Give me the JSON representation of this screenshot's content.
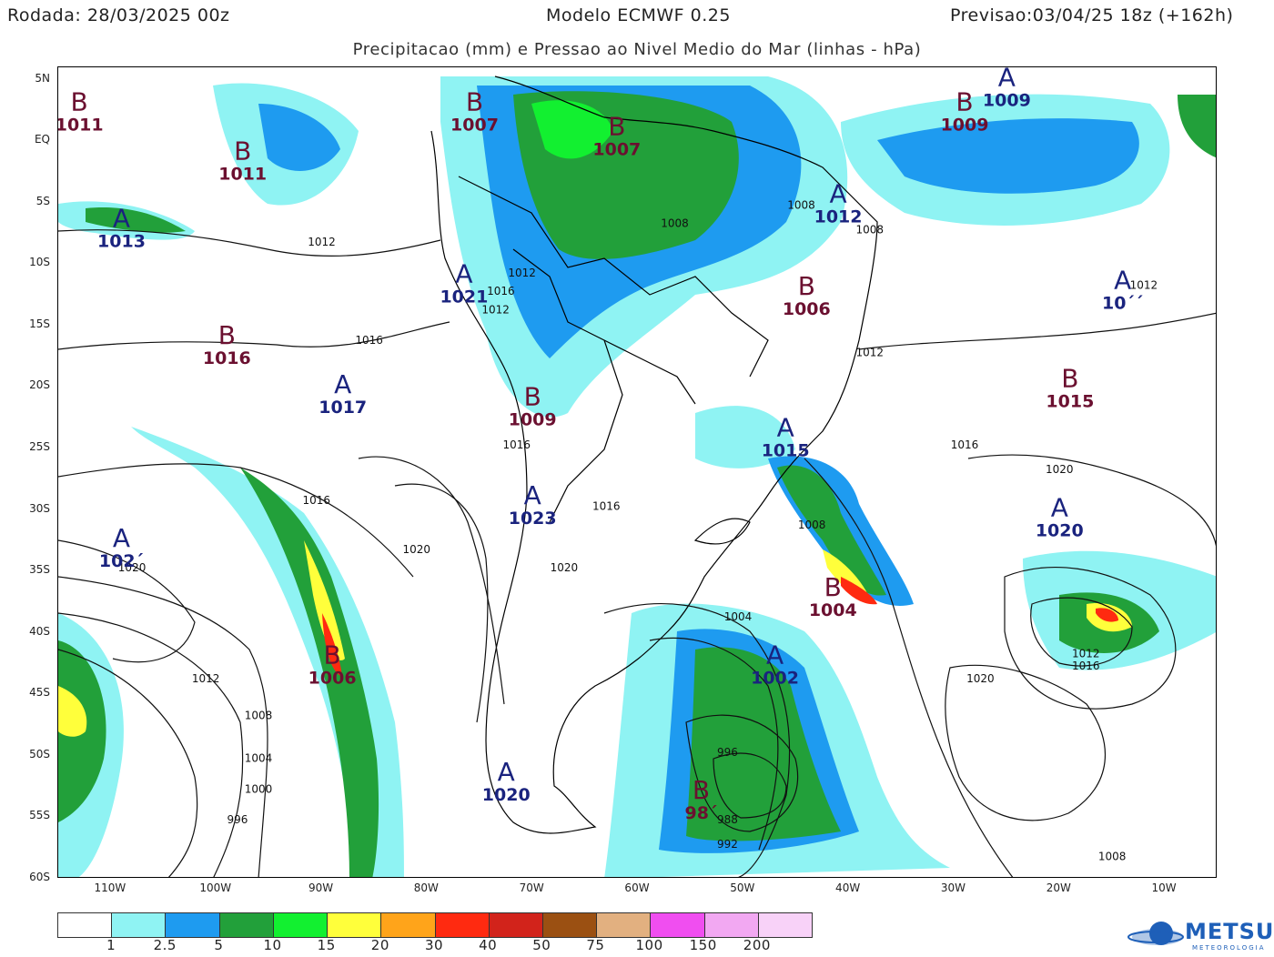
{
  "header": {
    "run": "Rodada: 28/03/2025 00z",
    "model": "Modelo ECMWF 0.25",
    "forecast": "Previsao:03/04/25 18z (+162h)",
    "subtitle": "Precipitacao (mm) e Pressao ao Nivel Medio do Mar (linhas - hPa)"
  },
  "axes": {
    "lat_labels": [
      "5N",
      "EQ",
      "5S",
      "10S",
      "15S",
      "20S",
      "25S",
      "30S",
      "35S",
      "40S",
      "45S",
      "50S",
      "55S",
      "60S"
    ],
    "lon_labels": [
      "110W",
      "100W",
      "90W",
      "80W",
      "70W",
      "60W",
      "50W",
      "40W",
      "30W",
      "20W",
      "10W"
    ]
  },
  "map": {
    "extent": {
      "lon_min": -115.0,
      "lon_max": -5.0,
      "lat_min": -60.0,
      "lat_max": 6.0
    },
    "pressure_centers": [
      {
        "type": "B",
        "value": "1011",
        "lon": -113,
        "lat": 2.5
      },
      {
        "type": "B",
        "value": "1011",
        "lon": -97.5,
        "lat": -1.5
      },
      {
        "type": "A",
        "value": "1013",
        "lon": -109,
        "lat": -7
      },
      {
        "type": "B",
        "value": "1007",
        "lon": -75.5,
        "lat": 2.5
      },
      {
        "type": "B",
        "value": "1007",
        "lon": -62,
        "lat": 0.5
      },
      {
        "type": "B",
        "value": "1009",
        "lon": -29,
        "lat": 2.5
      },
      {
        "type": "A",
        "value": "1009",
        "lon": -25,
        "lat": 4.5
      },
      {
        "type": "A",
        "value": "1012",
        "lon": -41,
        "lat": -5
      },
      {
        "type": "A",
        "value": "1021",
        "lon": -76.5,
        "lat": -11.5
      },
      {
        "type": "B",
        "value": "1006",
        "lon": -44,
        "lat": -12.5
      },
      {
        "type": "A",
        "value": "10´´",
        "lon": -14,
        "lat": -12
      },
      {
        "type": "B",
        "value": "1016",
        "lon": -99,
        "lat": -16.5
      },
      {
        "type": "A",
        "value": "1017",
        "lon": -88,
        "lat": -20.5
      },
      {
        "type": "B",
        "value": "1009",
        "lon": -70,
        "lat": -21.5
      },
      {
        "type": "B",
        "value": "1015",
        "lon": -19,
        "lat": -20
      },
      {
        "type": "A",
        "value": "1015",
        "lon": -46,
        "lat": -24
      },
      {
        "type": "A",
        "value": "1023",
        "lon": -70,
        "lat": -29.5
      },
      {
        "type": "A",
        "value": "1020",
        "lon": -20,
        "lat": -30.5
      },
      {
        "type": "A",
        "value": "102´",
        "lon": -109,
        "lat": -33
      },
      {
        "type": "B",
        "value": "1004",
        "lon": -41.5,
        "lat": -37
      },
      {
        "type": "B",
        "value": "1006",
        "lon": -89,
        "lat": -42.5
      },
      {
        "type": "A",
        "value": "1002",
        "lon": -47,
        "lat": -42.5
      },
      {
        "type": "A",
        "value": "1020",
        "lon": -72.5,
        "lat": -52
      },
      {
        "type": "B",
        "value": "98´",
        "lon": -54,
        "lat": -53.5
      }
    ],
    "isobar_labels": [
      {
        "value": "1012",
        "lon": -90,
        "lat": -8.5
      },
      {
        "value": "1012",
        "lon": -71,
        "lat": -11
      },
      {
        "value": "1016",
        "lon": -73,
        "lat": -12.5
      },
      {
        "value": "1012",
        "lon": -73.5,
        "lat": -14
      },
      {
        "value": "1016",
        "lon": -85.5,
        "lat": -16.5
      },
      {
        "value": "1008",
        "lon": -44.5,
        "lat": -5.5
      },
      {
        "value": "1008",
        "lon": -56.5,
        "lat": -7
      },
      {
        "value": "1008",
        "lon": -38,
        "lat": -7.5
      },
      {
        "value": "1012",
        "lon": -38,
        "lat": -17.5
      },
      {
        "value": "1012",
        "lon": -12,
        "lat": -12
      },
      {
        "value": "1016",
        "lon": -71.5,
        "lat": -25
      },
      {
        "value": "1016",
        "lon": -29,
        "lat": -25
      },
      {
        "value": "1020",
        "lon": -20,
        "lat": -27
      },
      {
        "value": "1016",
        "lon": -90.5,
        "lat": -29.5
      },
      {
        "value": "1016",
        "lon": -63,
        "lat": -30
      },
      {
        "value": "1008",
        "lon": -43.5,
        "lat": -31.5
      },
      {
        "value": "1020",
        "lon": -81,
        "lat": -33.5
      },
      {
        "value": "1020",
        "lon": -108,
        "lat": -35
      },
      {
        "value": "1020",
        "lon": -67,
        "lat": -35
      },
      {
        "value": "1004",
        "lon": -50.5,
        "lat": -39
      },
      {
        "value": "1012",
        "lon": -17.5,
        "lat": -42
      },
      {
        "value": "1016",
        "lon": -17.5,
        "lat": -43
      },
      {
        "value": "1012",
        "lon": -101,
        "lat": -44
      },
      {
        "value": "1020",
        "lon": -27.5,
        "lat": -44
      },
      {
        "value": "1008",
        "lon": -96,
        "lat": -47
      },
      {
        "value": "996",
        "lon": -51.5,
        "lat": -50
      },
      {
        "value": "1004",
        "lon": -96,
        "lat": -50.5
      },
      {
        "value": "1000",
        "lon": -96,
        "lat": -53
      },
      {
        "value": "988",
        "lon": -51.5,
        "lat": -55.5
      },
      {
        "value": "996",
        "lon": -98,
        "lat": -55.5
      },
      {
        "value": "992",
        "lon": -51.5,
        "lat": -57.5
      },
      {
        "value": "1008",
        "lon": -15,
        "lat": -58.5
      }
    ]
  },
  "scale": {
    "colors": [
      "#ffffff",
      "#8ff3f3",
      "#1e9bf0",
      "#22a03a",
      "#12f030",
      "#ffff3b",
      "#ffa41a",
      "#ff2a10",
      "#d2231b",
      "#9b5012",
      "#e2b080",
      "#f04ef0",
      "#f2a8f2",
      "#f8d2f8"
    ],
    "labels": [
      "1",
      "2.5",
      "5",
      "10",
      "15",
      "20",
      "30",
      "40",
      "50",
      "75",
      "100",
      "150",
      "200"
    ]
  },
  "logo": {
    "name": "METSUL",
    "tagline": "METEOROLOGIA"
  }
}
